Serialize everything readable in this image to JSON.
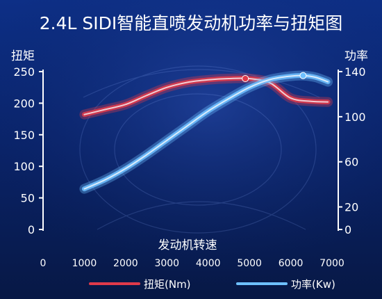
{
  "chart_data": {
    "type": "line",
    "title": "2.4L SIDI智能直喷发动机功率与扭矩图",
    "xlabel": "发动机转速",
    "ylabel_left": "扭矩",
    "ylabel_right": "功率",
    "x_ticks": [
      0,
      1000,
      2000,
      3000,
      4000,
      5000,
      6000,
      7000
    ],
    "xlim": [
      0,
      7000
    ],
    "y_left": {
      "ticks": [
        0,
        50,
        100,
        150,
        200,
        250
      ],
      "lim": [
        0,
        250
      ]
    },
    "y_right": {
      "ticks": [
        0,
        20,
        60,
        100,
        140
      ],
      "lim": [
        0,
        140
      ]
    },
    "grid": false,
    "legend_position": "bottom",
    "series": [
      {
        "name": "扭矩(Nm)",
        "axis": "left",
        "color": "#e03a4a",
        "points": [
          [
            1000,
            182
          ],
          [
            1500,
            190
          ],
          [
            2000,
            198
          ],
          [
            2500,
            212
          ],
          [
            3000,
            225
          ],
          [
            3500,
            233
          ],
          [
            4000,
            237
          ],
          [
            4500,
            239
          ],
          [
            5000,
            239
          ],
          [
            5500,
            232
          ],
          [
            6000,
            208
          ],
          [
            6500,
            203
          ],
          [
            6900,
            202
          ]
        ],
        "marker": [
          4900,
          239
        ]
      },
      {
        "name": "功率(Kw)",
        "axis": "right",
        "color": "#6ec0ff",
        "points": [
          [
            1000,
            36
          ],
          [
            1500,
            44
          ],
          [
            2000,
            54
          ],
          [
            2500,
            66
          ],
          [
            3000,
            79
          ],
          [
            3500,
            92
          ],
          [
            4000,
            105
          ],
          [
            4500,
            116
          ],
          [
            5000,
            126
          ],
          [
            5500,
            133
          ],
          [
            6000,
            136
          ],
          [
            6300,
            136.5
          ],
          [
            6600,
            135
          ],
          [
            6900,
            131
          ]
        ],
        "marker": [
          6300,
          136.5
        ]
      }
    ]
  }
}
